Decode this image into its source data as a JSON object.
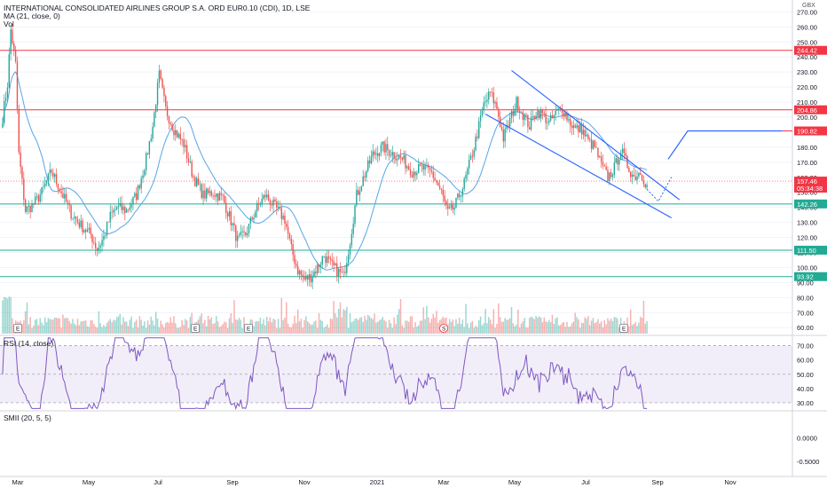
{
  "header": {
    "symbol_line": "INTERNATIONAL CONSOLIDATED AIRLINES GROUP S.A. ORD EUR0.10 (CDI), 1D, LSE",
    "ma_line": "MA (21, close, 0)",
    "vol_line": "Vol"
  },
  "rsi_title": "RSI (14, close)",
  "smii_title": "SMII (20, 5, 5)",
  "currency": "GBX",
  "chart_data": {
    "type": "candlestick",
    "x_labels": [
      "Mar",
      "May",
      "Jul",
      "Sep",
      "Nov",
      "2021",
      "Mar",
      "May",
      "Jul",
      "Sep",
      "Nov"
    ],
    "price_axis": {
      "ticks": [
        "270.00",
        "260.00",
        "250.00",
        "240.00",
        "230.00",
        "220.00",
        "210.00",
        "200.00",
        "190.00",
        "180.00",
        "170.00",
        "160.00",
        "150.00",
        "140.00",
        "130.00",
        "120.00",
        "110.00",
        "100.00",
        "90.00",
        "80.00",
        "70.00",
        "60.00"
      ],
      "range": [
        56,
        272
      ]
    },
    "horizontal_levels": [
      {
        "value": 244.42,
        "label": "244.42",
        "color": "#f23645"
      },
      {
        "value": 204.86,
        "label": "204.86",
        "color": "#f23645"
      },
      {
        "value": 190.82,
        "label": "190.82",
        "color": "#f23645"
      },
      {
        "value": 142.26,
        "label": "142.26",
        "color": "#22ab94"
      },
      {
        "value": 111.5,
        "label": "111.50",
        "color": "#22ab94"
      },
      {
        "value": 93.92,
        "label": "93.92",
        "color": "#22ab94"
      }
    ],
    "last_price": {
      "value": 157.46,
      "label": "157.46",
      "countdown": "05:34:38",
      "color": "#f23645"
    },
    "events": [
      "E",
      "E",
      "E",
      "S",
      "E",
      "E",
      "E",
      "E"
    ],
    "anchors": [
      [
        0,
        200
      ],
      [
        3,
        222
      ],
      [
        5,
        258
      ],
      [
        8,
        235
      ],
      [
        10,
        175
      ],
      [
        14,
        138
      ],
      [
        19,
        142
      ],
      [
        24,
        150
      ],
      [
        30,
        164
      ],
      [
        36,
        150
      ],
      [
        42,
        136
      ],
      [
        48,
        128
      ],
      [
        54,
        122
      ],
      [
        58,
        112
      ],
      [
        62,
        120
      ],
      [
        66,
        134
      ],
      [
        70,
        140
      ],
      [
        76,
        138
      ],
      [
        82,
        148
      ],
      [
        88,
        172
      ],
      [
        92,
        194
      ],
      [
        96,
        228
      ],
      [
        100,
        205
      ],
      [
        105,
        192
      ],
      [
        111,
        182
      ],
      [
        117,
        160
      ],
      [
        123,
        148
      ],
      [
        129,
        150
      ],
      [
        135,
        146
      ],
      [
        141,
        128
      ],
      [
        144,
        118
      ],
      [
        149,
        122
      ],
      [
        155,
        138
      ],
      [
        161,
        148
      ],
      [
        167,
        140
      ],
      [
        173,
        132
      ],
      [
        177,
        112
      ],
      [
        181,
        98
      ],
      [
        185,
        92
      ],
      [
        189,
        94
      ],
      [
        193,
        100
      ],
      [
        197,
        108
      ],
      [
        201,
        102
      ],
      [
        205,
        98
      ],
      [
        209,
        94
      ],
      [
        213,
        118
      ],
      [
        217,
        148
      ],
      [
        222,
        162
      ],
      [
        227,
        175
      ],
      [
        233,
        180
      ],
      [
        239,
        176
      ],
      [
        245,
        172
      ],
      [
        251,
        164
      ],
      [
        257,
        166
      ],
      [
        263,
        163
      ],
      [
        269,
        150
      ],
      [
        273,
        136
      ],
      [
        277,
        140
      ],
      [
        283,
        156
      ],
      [
        289,
        180
      ],
      [
        295,
        208
      ],
      [
        299,
        216
      ],
      [
        303,
        206
      ],
      [
        307,
        186
      ],
      [
        311,
        198
      ],
      [
        315,
        210
      ],
      [
        319,
        202
      ],
      [
        323,
        194
      ],
      [
        327,
        204
      ],
      [
        331,
        202
      ],
      [
        335,
        196
      ],
      [
        339,
        202
      ],
      [
        343,
        206
      ],
      [
        347,
        198
      ],
      [
        351,
        192
      ],
      [
        355,
        192
      ],
      [
        359,
        184
      ],
      [
        363,
        180
      ],
      [
        367,
        168
      ],
      [
        371,
        160
      ],
      [
        375,
        166
      ],
      [
        379,
        178
      ],
      [
        383,
        168
      ],
      [
        387,
        160
      ],
      [
        391,
        164
      ],
      [
        395,
        154
      ]
    ],
    "volume_range": [
      0,
      100
    ],
    "rsi_axis": {
      "ticks": [
        "70.00",
        "60.00",
        "50.00",
        "40.00",
        "30.00"
      ],
      "range": [
        25,
        76
      ],
      "overbought": 70,
      "oversold": 30
    },
    "smii_axis": {
      "ticks": [
        "0.0000",
        "-0.5000"
      ],
      "range": [
        -0.8,
        0.55
      ]
    },
    "drawings": {
      "channel_color": "#2962ff",
      "upper_line": [
        [
          312,
          231
        ],
        [
          415,
          145
        ]
      ],
      "lower_line": [
        [
          296,
          202
        ],
        [
          410,
          133
        ]
      ],
      "projection_color": "#2962ff",
      "projection_dotted": [
        [
          395,
          152
        ],
        [
          402,
          144
        ],
        [
          410,
          160
        ]
      ],
      "projection_solid": [
        [
          408,
          172
        ],
        [
          420,
          190.82
        ],
        [
          478,
          190.82
        ]
      ]
    }
  }
}
